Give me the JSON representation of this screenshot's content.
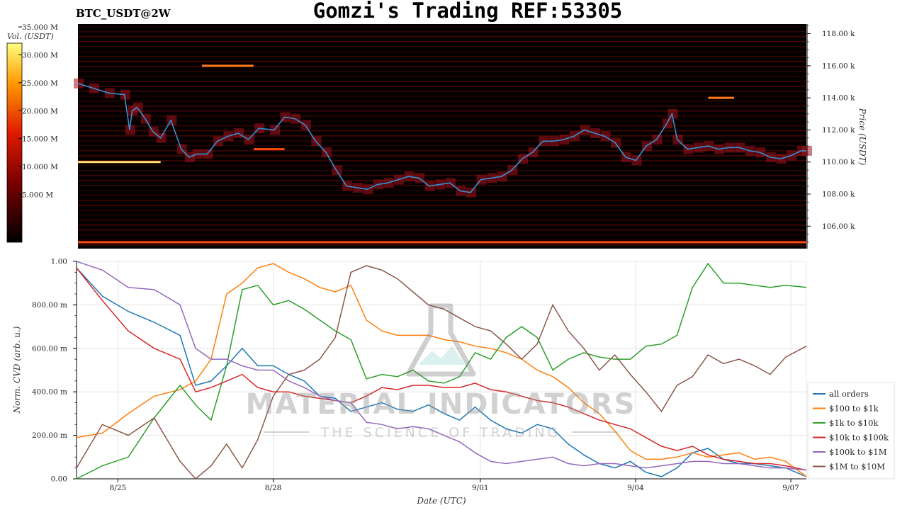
{
  "header": {
    "symbol": "BTC_USDT@2W",
    "title": "Gomzi's Trading REF:53305"
  },
  "watermark": {
    "line1": "MATERIAL INDICATORS",
    "line2": "THE SCIENCE OF TRADING"
  },
  "colors": {
    "heatmap_bg": "#050000",
    "price_line": "#3a8fd0",
    "grid": "#e4e4e4"
  },
  "chart_data": [
    {
      "type": "heatmap",
      "colorbar": {
        "label": "Vol. (USDT)",
        "ticks": [
          "5.000 M",
          "10.000 M",
          "15.000 M",
          "20.000 M",
          "25.000 M",
          "30.000 M",
          "35.000 M"
        ],
        "range": [
          0,
          35
        ]
      },
      "ylabel": "Price (USDT)",
      "y_ticks": [
        "106.00 k",
        "108.00 k",
        "110.00 k",
        "112.00 k",
        "114.00 k",
        "116.00 k",
        "118.00 k"
      ],
      "ylim": [
        104600,
        118600
      ],
      "x_range_days": [
        0,
        14.1
      ],
      "price_series": {
        "x": [
          0,
          0.3,
          0.6,
          0.9,
          1.0,
          1.05,
          1.15,
          1.3,
          1.45,
          1.6,
          1.8,
          2.0,
          2.15,
          2.3,
          2.5,
          2.7,
          2.9,
          3.1,
          3.3,
          3.5,
          3.8,
          4.0,
          4.2,
          4.4,
          4.6,
          4.8,
          5.0,
          5.2,
          5.4,
          5.6,
          5.8,
          6.0,
          6.2,
          6.4,
          6.6,
          6.8,
          7.0,
          7.2,
          7.4,
          7.6,
          7.8,
          8.0,
          8.2,
          8.4,
          8.6,
          8.8,
          9.0,
          9.2,
          9.4,
          9.6,
          9.8,
          10.0,
          10.2,
          10.4,
          10.6,
          10.8,
          11.0,
          11.2,
          11.4,
          11.5,
          11.6,
          11.8,
          12.0,
          12.2,
          12.4,
          12.6,
          12.8,
          13.0,
          13.2,
          13.4,
          13.6,
          13.8,
          14.0,
          14.1
        ],
        "y": [
          114900,
          114600,
          114300,
          114200,
          112000,
          113200,
          113400,
          112700,
          111900,
          111500,
          112600,
          110800,
          110300,
          110500,
          110500,
          111300,
          111600,
          111800,
          111400,
          112100,
          112000,
          112800,
          112700,
          112300,
          111300,
          110600,
          109500,
          108500,
          108400,
          108300,
          108600,
          108700,
          108900,
          109100,
          109000,
          108500,
          108600,
          108700,
          108200,
          108100,
          108900,
          109000,
          109100,
          109500,
          110200,
          110600,
          111300,
          111300,
          111400,
          111600,
          112000,
          111800,
          111600,
          111200,
          110300,
          110100,
          111000,
          111400,
          112400,
          113000,
          111400,
          110800,
          110900,
          111000,
          110800,
          110900,
          110900,
          110700,
          110600,
          110300,
          110200,
          110400,
          110700,
          110700
        ]
      },
      "order_levels": [
        {
          "day": 2.4,
          "price": 116000,
          "vol": 22,
          "len": 1.0
        },
        {
          "day": 0.0,
          "price": 110000,
          "vol": 30,
          "len": 1.6
        },
        {
          "day": 3.4,
          "price": 110800,
          "vol": 20,
          "len": 0.6
        },
        {
          "day": 12.2,
          "price": 114000,
          "vol": 22,
          "len": 0.5
        },
        {
          "day": 0.0,
          "price": 105000,
          "vol": 18,
          "len": 14.1
        }
      ]
    },
    {
      "type": "line",
      "xlabel": "Date (UTC)",
      "ylabel": "Norm. CVD (arb. u.)",
      "ylim": [
        0,
        1
      ],
      "y_ticks": [
        "0.00",
        "200.00 m",
        "400.00 m",
        "600.00 m",
        "800.00 m",
        "1.00"
      ],
      "x_range_days": [
        0,
        14.1
      ],
      "x_ticks": [
        {
          "day": 0.8,
          "label": "8/25"
        },
        {
          "day": 3.8,
          "label": "8/28"
        },
        {
          "day": 7.8,
          "label": "9/01"
        },
        {
          "day": 10.8,
          "label": "9/04"
        },
        {
          "day": 13.8,
          "label": "9/07"
        }
      ],
      "legend_position": "bottom-right",
      "series": [
        {
          "name": "all orders",
          "color": "#1f77b4",
          "x": [
            0,
            0.5,
            1.0,
            1.5,
            2.0,
            2.3,
            2.6,
            2.9,
            3.2,
            3.5,
            3.8,
            4.1,
            4.4,
            4.7,
            5.0,
            5.3,
            5.6,
            5.9,
            6.2,
            6.5,
            6.8,
            7.1,
            7.4,
            7.7,
            8.0,
            8.3,
            8.6,
            8.9,
            9.2,
            9.5,
            9.8,
            10.1,
            10.4,
            10.7,
            11.0,
            11.3,
            11.6,
            11.9,
            12.2,
            12.5,
            12.8,
            13.1,
            13.4,
            13.7,
            14.1
          ],
          "y": [
            0.97,
            0.84,
            0.77,
            0.72,
            0.66,
            0.43,
            0.45,
            0.52,
            0.6,
            0.52,
            0.52,
            0.48,
            0.45,
            0.38,
            0.37,
            0.31,
            0.33,
            0.35,
            0.32,
            0.31,
            0.34,
            0.3,
            0.27,
            0.33,
            0.27,
            0.23,
            0.21,
            0.25,
            0.23,
            0.16,
            0.11,
            0.07,
            0.05,
            0.08,
            0.03,
            0.01,
            0.05,
            0.12,
            0.14,
            0.09,
            0.07,
            0.07,
            0.06,
            0.05,
            0.01
          ]
        },
        {
          "name": "$100 to $1k",
          "color": "#ff7f0e",
          "x": [
            0,
            0.5,
            1.0,
            1.5,
            2.0,
            2.3,
            2.6,
            2.9,
            3.2,
            3.5,
            3.8,
            4.1,
            4.4,
            4.7,
            5.0,
            5.3,
            5.6,
            5.9,
            6.2,
            6.5,
            6.8,
            7.1,
            7.4,
            7.7,
            8.0,
            8.3,
            8.6,
            8.9,
            9.2,
            9.5,
            9.8,
            10.1,
            10.4,
            10.7,
            11.0,
            11.3,
            11.6,
            11.9,
            12.2,
            12.5,
            12.8,
            13.1,
            13.4,
            13.7,
            14.1
          ],
          "y": [
            0.19,
            0.21,
            0.3,
            0.38,
            0.41,
            0.45,
            0.55,
            0.85,
            0.9,
            0.97,
            0.99,
            0.95,
            0.92,
            0.88,
            0.86,
            0.89,
            0.73,
            0.68,
            0.66,
            0.66,
            0.66,
            0.64,
            0.63,
            0.61,
            0.6,
            0.58,
            0.55,
            0.5,
            0.47,
            0.42,
            0.35,
            0.3,
            0.22,
            0.13,
            0.09,
            0.09,
            0.1,
            0.12,
            0.1,
            0.11,
            0.12,
            0.09,
            0.1,
            0.08,
            0.01
          ]
        },
        {
          "name": "$1k to $10k",
          "color": "#2ca02c",
          "x": [
            0,
            0.5,
            1.0,
            1.5,
            2.0,
            2.3,
            2.6,
            2.9,
            3.2,
            3.5,
            3.8,
            4.1,
            4.4,
            4.7,
            5.0,
            5.3,
            5.6,
            5.9,
            6.2,
            6.5,
            6.8,
            7.1,
            7.4,
            7.7,
            8.0,
            8.3,
            8.6,
            8.9,
            9.2,
            9.5,
            9.8,
            10.1,
            10.4,
            10.7,
            11.0,
            11.3,
            11.6,
            11.9,
            12.2,
            12.5,
            12.8,
            13.1,
            13.4,
            13.7,
            14.1
          ],
          "y": [
            0.0,
            0.06,
            0.1,
            0.28,
            0.43,
            0.34,
            0.27,
            0.52,
            0.87,
            0.89,
            0.8,
            0.82,
            0.78,
            0.73,
            0.68,
            0.64,
            0.46,
            0.48,
            0.47,
            0.5,
            0.45,
            0.44,
            0.47,
            0.58,
            0.55,
            0.65,
            0.7,
            0.65,
            0.5,
            0.55,
            0.58,
            0.56,
            0.55,
            0.55,
            0.61,
            0.62,
            0.66,
            0.88,
            0.99,
            0.9,
            0.9,
            0.89,
            0.88,
            0.89,
            0.88
          ]
        },
        {
          "name": "$10k to $100k",
          "color": "#d62728",
          "x": [
            0,
            0.5,
            1.0,
            1.5,
            2.0,
            2.3,
            2.6,
            2.9,
            3.2,
            3.5,
            3.8,
            4.1,
            4.4,
            4.7,
            5.0,
            5.3,
            5.6,
            5.9,
            6.2,
            6.5,
            6.8,
            7.1,
            7.4,
            7.7,
            8.0,
            8.3,
            8.6,
            8.9,
            9.2,
            9.5,
            9.8,
            10.1,
            10.4,
            10.7,
            11.0,
            11.3,
            11.6,
            11.9,
            12.2,
            12.5,
            12.8,
            13.1,
            13.4,
            13.7,
            14.1
          ],
          "y": [
            0.97,
            0.82,
            0.68,
            0.6,
            0.55,
            0.4,
            0.42,
            0.45,
            0.48,
            0.42,
            0.4,
            0.4,
            0.38,
            0.37,
            0.36,
            0.35,
            0.38,
            0.42,
            0.41,
            0.43,
            0.43,
            0.42,
            0.42,
            0.44,
            0.41,
            0.4,
            0.38,
            0.36,
            0.35,
            0.33,
            0.3,
            0.27,
            0.25,
            0.23,
            0.19,
            0.15,
            0.13,
            0.15,
            0.11,
            0.09,
            0.08,
            0.07,
            0.07,
            0.06,
            0.04
          ]
        },
        {
          "name": "$100k to $1M",
          "color": "#9467bd",
          "x": [
            0,
            0.5,
            1.0,
            1.5,
            2.0,
            2.3,
            2.6,
            2.9,
            3.2,
            3.5,
            3.8,
            4.1,
            4.4,
            4.7,
            5.0,
            5.3,
            5.6,
            5.9,
            6.2,
            6.5,
            6.8,
            7.1,
            7.4,
            7.7,
            8.0,
            8.3,
            8.6,
            8.9,
            9.2,
            9.5,
            9.8,
            10.1,
            10.4,
            10.7,
            11.0,
            11.3,
            11.6,
            11.9,
            12.2,
            12.5,
            12.8,
            13.1,
            13.4,
            13.7,
            14.1
          ],
          "y": [
            1.0,
            0.96,
            0.88,
            0.87,
            0.8,
            0.6,
            0.55,
            0.55,
            0.52,
            0.5,
            0.5,
            0.45,
            0.42,
            0.38,
            0.36,
            0.35,
            0.26,
            0.25,
            0.23,
            0.24,
            0.23,
            0.2,
            0.17,
            0.12,
            0.08,
            0.07,
            0.08,
            0.09,
            0.1,
            0.07,
            0.06,
            0.07,
            0.07,
            0.06,
            0.05,
            0.06,
            0.07,
            0.08,
            0.08,
            0.07,
            0.07,
            0.06,
            0.05,
            0.05,
            0.04
          ]
        },
        {
          "name": "$1M to $10M",
          "color": "#8c564b",
          "x": [
            0,
            0.5,
            1.0,
            1.5,
            2.0,
            2.3,
            2.6,
            2.9,
            3.2,
            3.5,
            3.8,
            4.1,
            4.4,
            4.7,
            5.0,
            5.3,
            5.6,
            5.9,
            6.2,
            6.5,
            6.8,
            7.1,
            7.4,
            7.7,
            8.0,
            8.3,
            8.6,
            8.9,
            9.2,
            9.5,
            9.8,
            10.1,
            10.4,
            10.7,
            11.0,
            11.3,
            11.6,
            11.9,
            12.2,
            12.5,
            12.8,
            13.1,
            13.4,
            13.7,
            14.1
          ],
          "y": [
            0.05,
            0.25,
            0.2,
            0.28,
            0.08,
            0.0,
            0.06,
            0.16,
            0.05,
            0.18,
            0.38,
            0.48,
            0.5,
            0.55,
            0.65,
            0.95,
            0.98,
            0.96,
            0.92,
            0.86,
            0.8,
            0.78,
            0.74,
            0.7,
            0.68,
            0.62,
            0.55,
            0.62,
            0.8,
            0.68,
            0.6,
            0.5,
            0.57,
            0.48,
            0.4,
            0.31,
            0.43,
            0.47,
            0.57,
            0.53,
            0.55,
            0.52,
            0.48,
            0.56,
            0.61
          ]
        }
      ]
    }
  ]
}
